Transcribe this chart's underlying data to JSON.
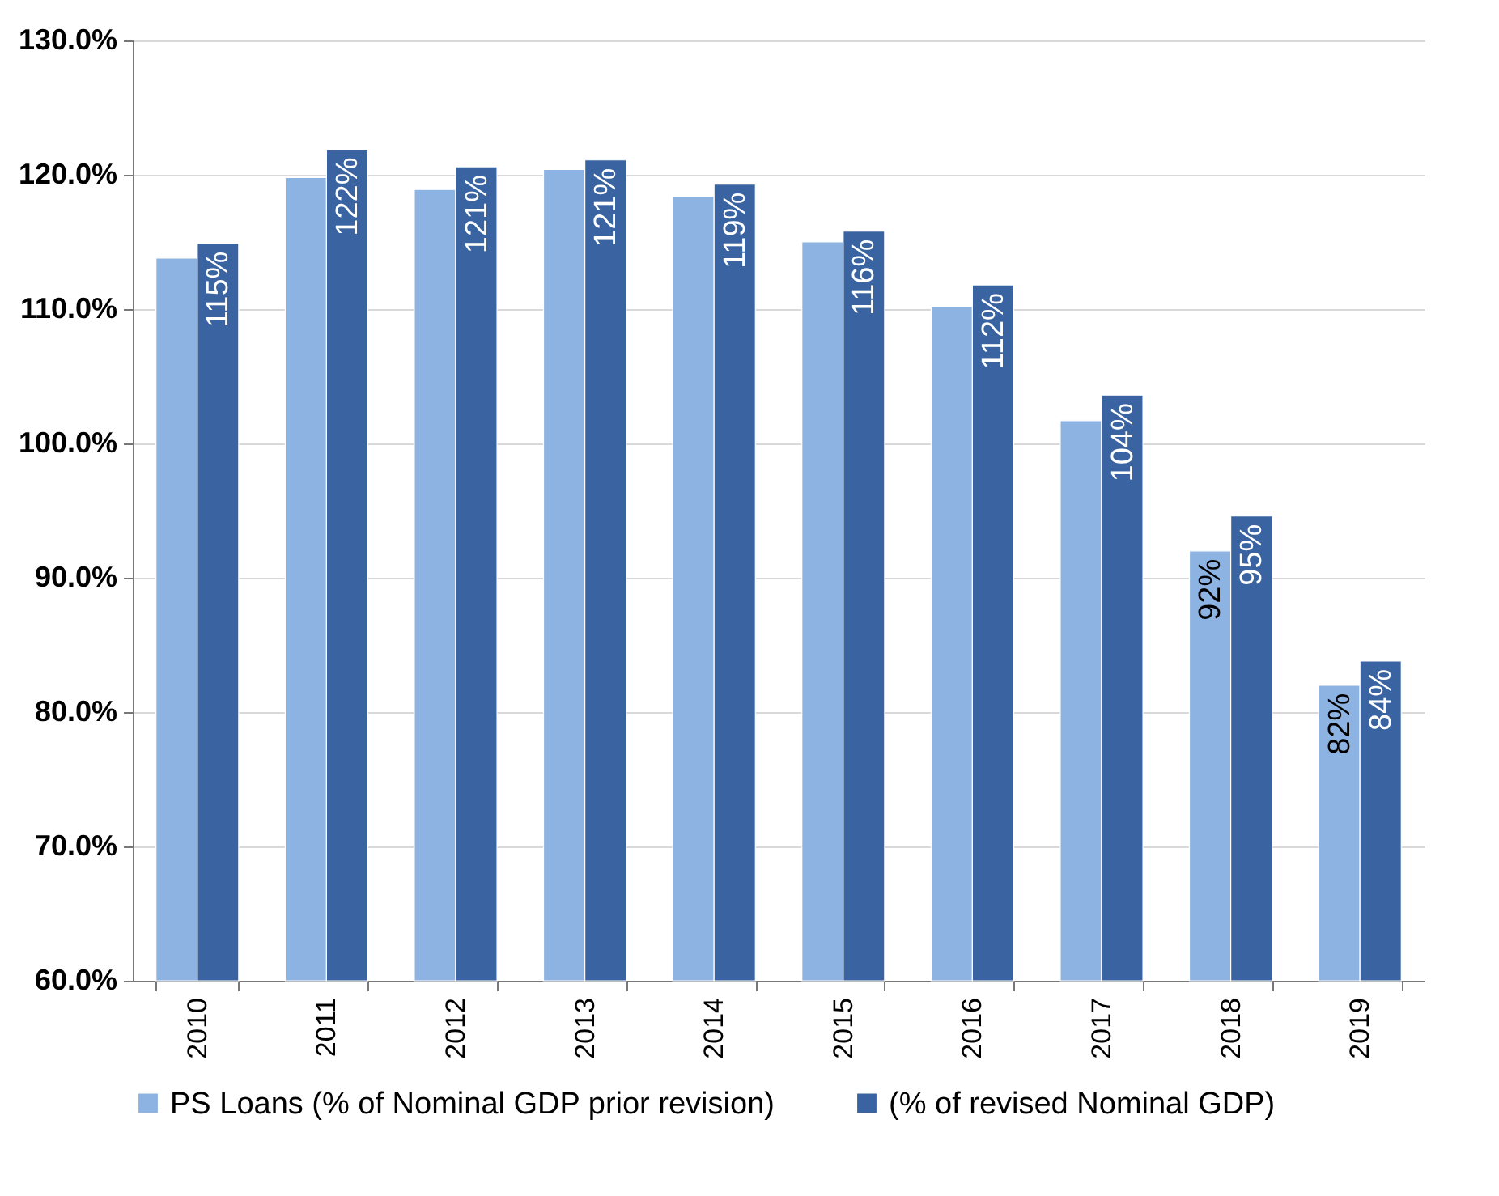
{
  "chart_data": {
    "type": "bar",
    "categories": [
      "2010",
      "2011",
      "2012",
      "2013",
      "2014",
      "2015",
      "2016",
      "2017",
      "2018",
      "2019"
    ],
    "series": [
      {
        "name": "PS Loans (% of  Nominal GDP prior revision)",
        "color": "#8db3e2",
        "values": [
          113.8,
          119.8,
          118.9,
          120.4,
          118.4,
          115.0,
          110.2,
          101.7,
          92.0,
          82.0
        ],
        "value_labels": [
          null,
          null,
          null,
          null,
          null,
          null,
          null,
          null,
          "92%",
          "82%"
        ]
      },
      {
        "name": "(% of revised Nominal GDP)",
        "color": "#3a64a1",
        "values": [
          114.9,
          121.9,
          120.6,
          121.1,
          119.3,
          115.8,
          111.8,
          103.6,
          94.6,
          83.8
        ],
        "value_labels": [
          "115%",
          "122%",
          "121%",
          "121%",
          "119%",
          "116%",
          "112%",
          "104%",
          "95%",
          "84%"
        ]
      }
    ],
    "ylim": [
      60,
      130
    ],
    "yticks": [
      {
        "value": 60,
        "label": "60.0%"
      },
      {
        "value": 70,
        "label": "70.0%"
      },
      {
        "value": 80,
        "label": "80.0%"
      },
      {
        "value": 90,
        "label": "90.0%"
      },
      {
        "value": 100,
        "label": "100.0%"
      },
      {
        "value": 110,
        "label": "110.0%"
      },
      {
        "value": 120,
        "label": "120.0%"
      },
      {
        "value": 130,
        "label": "130.0%"
      }
    ],
    "grid": "y",
    "legend": "bottom"
  }
}
